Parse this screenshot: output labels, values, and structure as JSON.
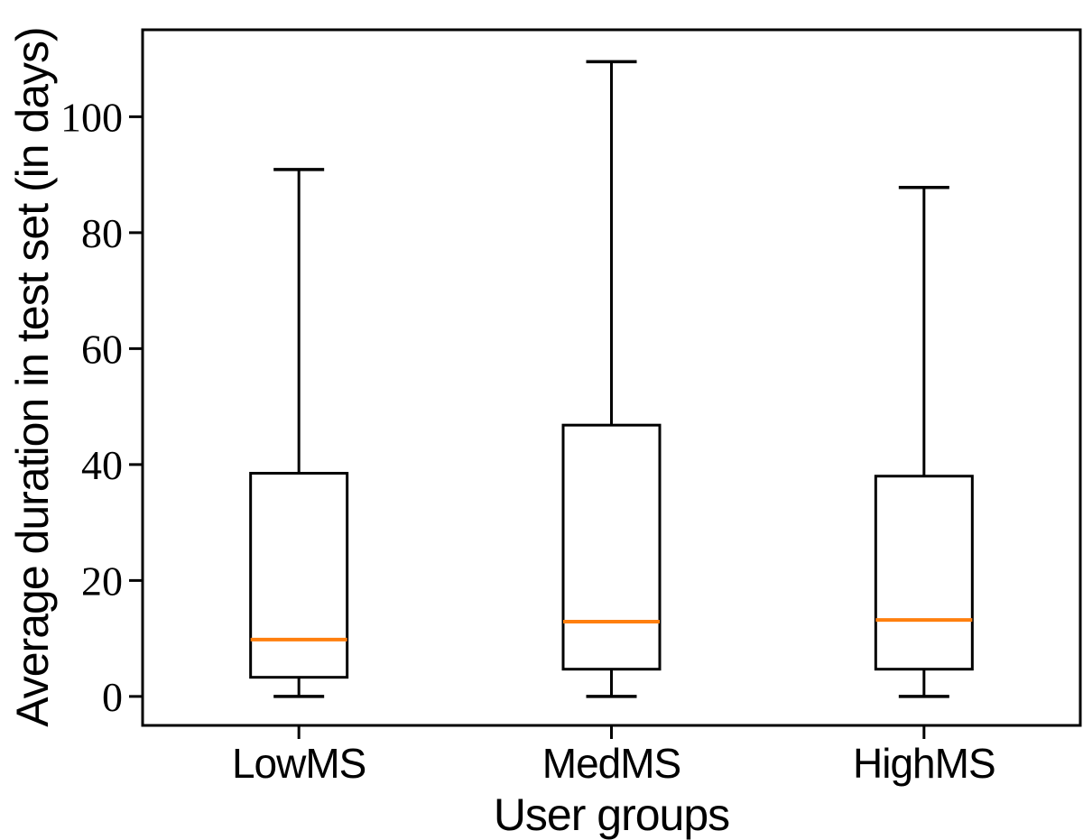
{
  "chart_data": {
    "type": "boxplot",
    "title": "",
    "xlabel": "User groups",
    "ylabel": "Average duration in test set (in days)",
    "categories": [
      "LowMS",
      "MedMS",
      "HighMS"
    ],
    "series": [
      {
        "name": "LowMS",
        "whisker_low": 0,
        "q1": 3.3,
        "median": 9.8,
        "q3": 38.5,
        "whisker_high": 90.9
      },
      {
        "name": "MedMS",
        "whisker_low": 0,
        "q1": 4.7,
        "median": 12.9,
        "q3": 46.8,
        "whisker_high": 109.5
      },
      {
        "name": "HighMS",
        "whisker_low": 0,
        "q1": 4.7,
        "median": 13.2,
        "q3": 38.0,
        "whisker_high": 87.8
      }
    ],
    "yticks": [
      0,
      20,
      40,
      60,
      80,
      100
    ],
    "ylim": [
      -5,
      115
    ],
    "grid": false,
    "legend": null,
    "colors": {
      "box_stroke": "#000000",
      "box_fill": "#ffffff",
      "median": "#ff7f0e",
      "axis": "#000000",
      "text": "#000000",
      "background": "#ffffff"
    }
  }
}
